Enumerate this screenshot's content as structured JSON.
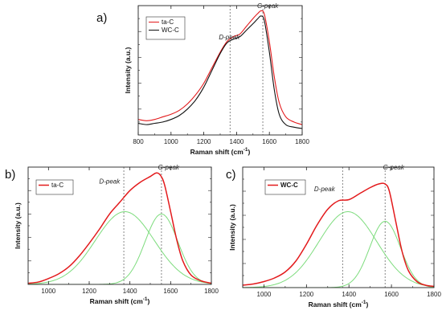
{
  "chart_data": [
    {
      "panel_label": "a)",
      "type": "line",
      "xlabel": "Raman shift (cm",
      "xlabel_sup": "-1",
      "xlabel_close": ")",
      "ylabel": "Intensity (a.u.)",
      "xlim": [
        800,
        1800
      ],
      "ylim": [
        0,
        1
      ],
      "xticks": [
        800,
        1000,
        1200,
        1400,
        1600,
        1800
      ],
      "yticks_labeled": false,
      "vlines": [
        1360,
        1560
      ],
      "annotations": [
        {
          "text": "D-peak",
          "x": 1355,
          "y": 0.74
        },
        {
          "text": "G-peak",
          "x": 1590,
          "y": 0.98
        }
      ],
      "legend": "top-left",
      "series": [
        {
          "name": "ta-C",
          "color": "#e31a1c",
          "x": [
            800,
            850,
            900,
            950,
            1000,
            1050,
            1100,
            1150,
            1200,
            1250,
            1300,
            1340,
            1380,
            1420,
            1460,
            1500,
            1530,
            1550,
            1570,
            1600,
            1630,
            1660,
            1700,
            1750,
            1800
          ],
          "y": [
            0.12,
            0.11,
            0.12,
            0.14,
            0.16,
            0.19,
            0.24,
            0.31,
            0.4,
            0.52,
            0.64,
            0.72,
            0.76,
            0.78,
            0.84,
            0.9,
            0.94,
            0.96,
            0.93,
            0.72,
            0.45,
            0.25,
            0.14,
            0.1,
            0.08
          ]
        },
        {
          "name": "WC-C",
          "color": "#111111",
          "x": [
            800,
            850,
            900,
            950,
            1000,
            1050,
            1100,
            1150,
            1200,
            1250,
            1300,
            1340,
            1380,
            1420,
            1460,
            1500,
            1530,
            1550,
            1570,
            1600,
            1630,
            1660,
            1700,
            1750,
            1800
          ],
          "y": [
            0.09,
            0.08,
            0.09,
            0.1,
            0.12,
            0.15,
            0.2,
            0.27,
            0.37,
            0.5,
            0.63,
            0.71,
            0.74,
            0.76,
            0.81,
            0.86,
            0.9,
            0.92,
            0.88,
            0.64,
            0.35,
            0.16,
            0.08,
            0.06,
            0.05
          ]
        }
      ]
    },
    {
      "panel_label": "b)",
      "type": "line",
      "xlabel": "Raman shift (cm",
      "xlabel_sup": "-1",
      "xlabel_close": ")",
      "ylabel": "Intensity (a.u.)",
      "xlim": [
        900,
        1800
      ],
      "ylim": [
        0,
        1
      ],
      "xticks": [
        1000,
        1200,
        1400,
        1600,
        1800
      ],
      "yticks_labeled": false,
      "vlines": [
        1370,
        1555
      ],
      "annotations": [
        {
          "text": "D-peak",
          "x": 1300,
          "y": 0.86
        },
        {
          "text": "G-peak",
          "x": 1590,
          "y": 0.98
        }
      ],
      "legend": "top-left",
      "series": [
        {
          "name": "ta-C",
          "color": "#e31a1c",
          "x": [
            900,
            950,
            1000,
            1050,
            1100,
            1150,
            1200,
            1250,
            1300,
            1350,
            1400,
            1450,
            1500,
            1530,
            1550,
            1570,
            1600,
            1630,
            1660,
            1700,
            1750,
            1800
          ],
          "y": [
            0.01,
            0.02,
            0.05,
            0.09,
            0.15,
            0.24,
            0.35,
            0.47,
            0.6,
            0.7,
            0.8,
            0.87,
            0.92,
            0.95,
            0.93,
            0.85,
            0.62,
            0.38,
            0.2,
            0.08,
            0.03,
            0.01
          ]
        }
      ],
      "fit_components": [
        {
          "center": 1375,
          "height": 0.62,
          "width": 170
        },
        {
          "center": 1555,
          "height": 0.6,
          "width": 95
        }
      ],
      "fit_color": "#7ddc7d"
    },
    {
      "panel_label": "c)",
      "type": "line",
      "xlabel": "Raman shift (cm",
      "xlabel_sup": "-1",
      "xlabel_close": ")",
      "ylabel": "Intensity (a.u.)",
      "xlim": [
        900,
        1800
      ],
      "ylim": [
        0,
        1
      ],
      "xticks": [
        1000,
        1200,
        1400,
        1600,
        1800
      ],
      "yticks_labeled": false,
      "vlines": [
        1370,
        1570
      ],
      "annotations": [
        {
          "text": "D-peak",
          "x": 1285,
          "y": 0.8
        },
        {
          "text": "G-peak",
          "x": 1610,
          "y": 0.98
        }
      ],
      "legend": "top-left",
      "series": [
        {
          "name": "WC-C",
          "color": "#e31a1c",
          "x": [
            900,
            950,
            1000,
            1050,
            1100,
            1150,
            1200,
            1250,
            1300,
            1350,
            1400,
            1450,
            1500,
            1540,
            1570,
            1590,
            1620,
            1650,
            1680,
            1720,
            1760,
            1800
          ],
          "y": [
            0.02,
            0.03,
            0.05,
            0.08,
            0.13,
            0.22,
            0.36,
            0.52,
            0.65,
            0.72,
            0.73,
            0.78,
            0.83,
            0.86,
            0.86,
            0.8,
            0.55,
            0.3,
            0.14,
            0.05,
            0.02,
            0.01
          ]
        }
      ],
      "fit_components": [
        {
          "center": 1395,
          "height": 0.63,
          "width": 160
        },
        {
          "center": 1570,
          "height": 0.55,
          "width": 85
        }
      ],
      "fit_color": "#7ddc7d"
    }
  ]
}
